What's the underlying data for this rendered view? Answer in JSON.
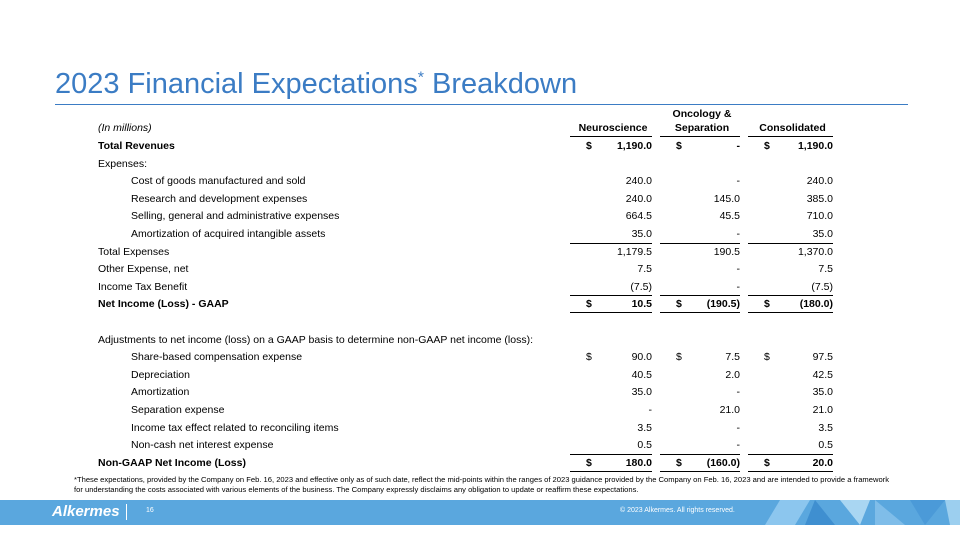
{
  "title": {
    "main": "2023 Financial Expectations",
    "mark": "*",
    "rest": " Breakdown"
  },
  "table": {
    "unit_note": "(In millions)",
    "columns": [
      "Neuroscience",
      "Oncology & Separation",
      "Consolidated"
    ],
    "rows": [
      {
        "label": "Total Revenues",
        "currency": "$",
        "values": [
          "1,190.0",
          "-",
          "1,190.0"
        ]
      },
      {
        "label": "Expenses:"
      },
      {
        "label": "Cost of goods manufactured and sold",
        "values": [
          "240.0",
          "-",
          "240.0"
        ]
      },
      {
        "label": "Research and development expenses",
        "values": [
          "240.0",
          "145.0",
          "385.0"
        ]
      },
      {
        "label": "Selling, general and administrative expenses",
        "values": [
          "664.5",
          "45.5",
          "710.0"
        ]
      },
      {
        "label": "Amortization of acquired intangible assets",
        "values": [
          "35.0",
          "-",
          "35.0"
        ]
      },
      {
        "label": "Total Expenses",
        "values": [
          "1,179.5",
          "190.5",
          "1,370.0"
        ]
      },
      {
        "label": "Other Expense, net",
        "values": [
          "7.5",
          "-",
          "7.5"
        ]
      },
      {
        "label": "Income Tax Benefit",
        "values": [
          "(7.5)",
          "-",
          "(7.5)"
        ]
      },
      {
        "label": "Net Income (Loss) - GAAP",
        "currency": "$",
        "values": [
          "10.5",
          "(190.5)",
          "(180.0)"
        ]
      },
      {
        "label": "Adjustments to net income (loss) on a GAAP basis to determine non-GAAP net income (loss):"
      },
      {
        "label": "Share-based compensation expense",
        "currency": "$",
        "values": [
          "90.0",
          "7.5",
          "97.5"
        ]
      },
      {
        "label": "Depreciation",
        "values": [
          "40.5",
          "2.0",
          "42.5"
        ]
      },
      {
        "label": "Amortization",
        "values": [
          "35.0",
          "-",
          "35.0"
        ]
      },
      {
        "label": "Separation expense",
        "values": [
          "-",
          "21.0",
          "21.0"
        ]
      },
      {
        "label": "Income tax effect related to reconciling items",
        "values": [
          "3.5",
          "-",
          "3.5"
        ]
      },
      {
        "label": "Non-cash net interest expense",
        "values": [
          "0.5",
          "-",
          "0.5"
        ]
      },
      {
        "label": "Non-GAAP Net Income (Loss)",
        "currency": "$",
        "values": [
          "180.0",
          "(160.0)",
          "20.0"
        ]
      }
    ]
  },
  "footnote": "*These expectations, provided by the Company on Feb. 16, 2023 and effective only as of such date, reflect the mid-points within the ranges of 2023 guidance provided by the Company on Feb. 16, 2023 and are intended to provide a framework for understanding the costs associated with various elements of the business. The Company expressly disclaims any obligation to update or reaffirm these expectations.",
  "footer": {
    "logo": "Alkermes",
    "page": "16",
    "copyright": "© 2023 Alkermes. All rights reserved."
  }
}
